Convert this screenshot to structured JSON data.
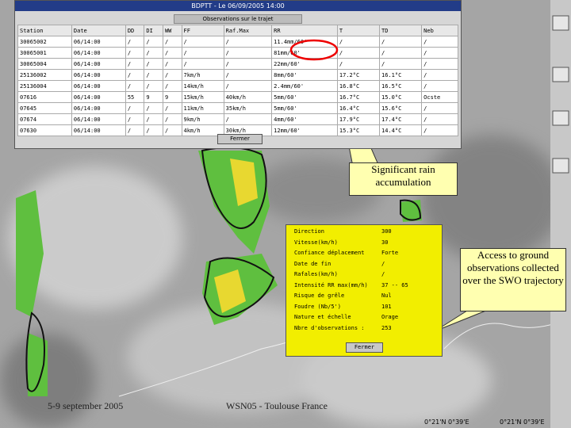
{
  "window": {
    "title": "BDPTT - Le 06/09/2005 14:00",
    "subtitle": "Observations sur le trajet",
    "table": {
      "header": [
        "Station",
        "Date",
        "DD",
        "DI",
        "WW",
        "FF",
        "Raf.Max",
        "RR",
        "T",
        "TD",
        "Neb"
      ],
      "rows": [
        [
          "30065002",
          "06/14:00",
          "/",
          "/",
          "/",
          "/",
          "/",
          "11.4mm/60'",
          "/",
          "/",
          "/"
        ],
        [
          "30065001",
          "06/14:00",
          "/",
          "/",
          "/",
          "/",
          "/",
          "81mm/60'",
          "/",
          "/",
          "/"
        ],
        [
          "30065004",
          "06/14:00",
          "/",
          "/",
          "/",
          "/",
          "/",
          "22mm/60'",
          "/",
          "/",
          "/"
        ],
        [
          "25136002",
          "06/14:00",
          "/",
          "/",
          "/",
          "7km/h",
          "/",
          "8mm/60'",
          "17.2°C",
          "16.1°C",
          "/"
        ],
        [
          "25136004",
          "06/14:00",
          "/",
          "/",
          "/",
          "14km/h",
          "/",
          "2.4mm/60'",
          "16.8°C",
          "16.5°C",
          "/"
        ],
        [
          "07616",
          "06/14:00",
          "55",
          "9",
          "9",
          "15km/h",
          "40km/h",
          "5mm/60'",
          "16.7°C",
          "15.0°C",
          "Ocste"
        ],
        [
          "07645",
          "06/14:00",
          "/",
          "/",
          "/",
          "11km/h",
          "35km/h",
          "5mm/60'",
          "16.4°C",
          "15.6°C",
          "/"
        ],
        [
          "07674",
          "06/14:00",
          "/",
          "/",
          "/",
          "9km/h",
          "/",
          "4mm/60'",
          "17.9°C",
          "17.4°C",
          "/"
        ],
        [
          "07630",
          "06/14:00",
          "/",
          "/",
          "/",
          "4km/h",
          "30km/h",
          "12mm/60'",
          "15.3°C",
          "14.4°C",
          "/"
        ]
      ]
    },
    "button": "Fermer"
  },
  "panel": {
    "fields": [
      {
        "label": "Direction",
        "value": "300"
      },
      {
        "label": "Vitesse(km/h)",
        "value": "30"
      },
      {
        "label": "Confiance déplacement",
        "value": "Forte"
      },
      {
        "label": "Date de fin",
        "value": "/"
      },
      {
        "label": "Rafales(km/h)",
        "value": "/"
      },
      {
        "label": "Intensité RR max(mm/h)",
        "value": "37 -- 65"
      },
      {
        "label": "Risque de grêle",
        "value": "Nul"
      },
      {
        "label": "Foudre (Nb/5')",
        "value": "101"
      },
      {
        "label": "Nature et échelle",
        "value": "Orage"
      },
      {
        "label": "Nbre d'observations :",
        "value": "253"
      }
    ],
    "button": "Fermer"
  },
  "callouts": [
    "Significant rain accumulation",
    "Access to ground observations collected over the SWO trajectory"
  ],
  "footer": {
    "left": "5-9 september 2005",
    "center": "WSN05 - Toulouse France"
  },
  "coords": [
    "0°21'N 0°39'E",
    "0°21'N 0°39'E"
  ]
}
